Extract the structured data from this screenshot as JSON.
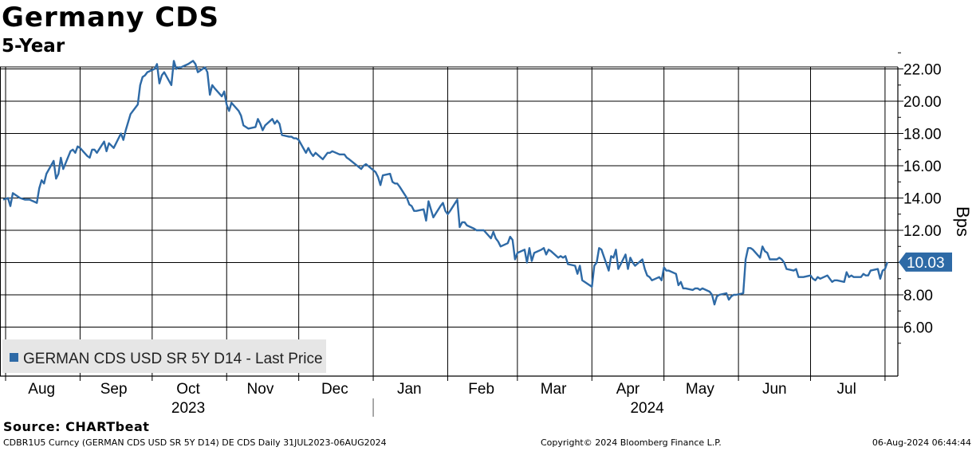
{
  "header": {
    "title": "Germany CDS",
    "subtitle": "5-Year"
  },
  "footer": {
    "source": "Source: CHARTbeat",
    "security_line": "CDBR1U5 Curncy (GERMAN CDS USD SR 5Y D14) DE CDS  Daily 31JUL2023-06AUG2024",
    "copyright": "Copyright© 2024 Bloomberg Finance L.P.",
    "timestamp": "06-Aug-2024 06:44:44"
  },
  "colors": {
    "series": "#2e6aa6",
    "grid": "#000000",
    "legend_bg": "#e6e6e6"
  },
  "chart_data": {
    "type": "line",
    "xlabel": "",
    "ylabel": "Bps",
    "ylim": [
      5,
      24
    ],
    "yticks": [
      6,
      8,
      10,
      12,
      14,
      16,
      18,
      20,
      22
    ],
    "ytick_labels": [
      "6.00",
      "8.00",
      "10.00",
      "12.00",
      "14.00",
      "16.00",
      "18.00",
      "20.00",
      "22.00"
    ],
    "xlim": [
      "2023-07-31",
      "2024-08-06"
    ],
    "x_month_labels": [
      {
        "label": "Aug",
        "date": "2023-08-16"
      },
      {
        "label": "Sep",
        "date": "2023-09-15"
      },
      {
        "label": "Oct",
        "date": "2023-10-16"
      },
      {
        "label": "Nov",
        "date": "2023-11-15"
      },
      {
        "label": "Dec",
        "date": "2023-12-16"
      },
      {
        "label": "Jan",
        "date": "2024-01-16"
      },
      {
        "label": "Feb",
        "date": "2024-02-15"
      },
      {
        "label": "Mar",
        "date": "2024-03-16"
      },
      {
        "label": "Apr",
        "date": "2024-04-16"
      },
      {
        "label": "May",
        "date": "2024-05-16"
      },
      {
        "label": "Jun",
        "date": "2024-06-16"
      },
      {
        "label": "Jul",
        "date": "2024-07-16"
      }
    ],
    "x_year_labels": [
      {
        "label": "2023",
        "date": "2023-10-16"
      },
      {
        "label": "2024",
        "date": "2024-04-24"
      }
    ],
    "x_gridlines": [
      "2023-08-01",
      "2023-09-01",
      "2023-10-01",
      "2023-11-01",
      "2023-12-01",
      "2024-01-01",
      "2024-02-01",
      "2024-03-01",
      "2024-04-01",
      "2024-05-01",
      "2024-06-01",
      "2024-07-01",
      "2024-08-01"
    ],
    "year_separator": "2024-01-01",
    "grid": true,
    "legend": {
      "position": "bottom-left",
      "label": "GERMAN CDS USD SR 5Y D14 - Last Price"
    },
    "last_value_label": "10.03",
    "series": [
      {
        "name": "GERMAN CDS USD SR 5Y D14 - Last Price",
        "points": [
          [
            "2023-07-31",
            13.9
          ],
          [
            "2023-08-02",
            14.0
          ],
          [
            "2023-08-03",
            13.5
          ],
          [
            "2023-08-04",
            14.3
          ],
          [
            "2023-08-07",
            14.0
          ],
          [
            "2023-08-09",
            13.9
          ],
          [
            "2023-08-11",
            13.9
          ],
          [
            "2023-08-14",
            13.7
          ],
          [
            "2023-08-15",
            14.6
          ],
          [
            "2023-08-16",
            15.1
          ],
          [
            "2023-08-17",
            14.9
          ],
          [
            "2023-08-18",
            15.5
          ],
          [
            "2023-08-21",
            16.3
          ],
          [
            "2023-08-22",
            15.2
          ],
          [
            "2023-08-23",
            15.5
          ],
          [
            "2023-08-24",
            16.5
          ],
          [
            "2023-08-25",
            15.8
          ],
          [
            "2023-08-28",
            16.9
          ],
          [
            "2023-08-29",
            17.0
          ],
          [
            "2023-08-30",
            16.8
          ],
          [
            "2023-08-31",
            17.2
          ],
          [
            "2023-09-01",
            17.1
          ],
          [
            "2023-09-04",
            16.6
          ],
          [
            "2023-09-05",
            16.5
          ],
          [
            "2023-09-06",
            17.0
          ],
          [
            "2023-09-07",
            17.0
          ],
          [
            "2023-09-08",
            16.8
          ],
          [
            "2023-09-11",
            17.5
          ],
          [
            "2023-09-12",
            16.9
          ],
          [
            "2023-09-13",
            17.4
          ],
          [
            "2023-09-15",
            17.1
          ],
          [
            "2023-09-18",
            18.0
          ],
          [
            "2023-09-19",
            17.6
          ],
          [
            "2023-09-20",
            18.2
          ],
          [
            "2023-09-22",
            19.2
          ],
          [
            "2023-09-25",
            19.8
          ],
          [
            "2023-09-26",
            21.0
          ],
          [
            "2023-09-27",
            21.5
          ],
          [
            "2023-09-28",
            21.6
          ],
          [
            "2023-09-29",
            21.8
          ],
          [
            "2023-10-02",
            22.0
          ],
          [
            "2023-10-03",
            22.3
          ],
          [
            "2023-10-04",
            21.1
          ],
          [
            "2023-10-05",
            21.6
          ],
          [
            "2023-10-06",
            21.8
          ],
          [
            "2023-10-09",
            21.0
          ],
          [
            "2023-10-10",
            22.5
          ],
          [
            "2023-10-11",
            22.0
          ],
          [
            "2023-10-12",
            22.1
          ],
          [
            "2023-10-13",
            22.1
          ],
          [
            "2023-10-16",
            22.3
          ],
          [
            "2023-10-17",
            22.4
          ],
          [
            "2023-10-18",
            22.5
          ],
          [
            "2023-10-19",
            22.3
          ],
          [
            "2023-10-20",
            21.8
          ],
          [
            "2023-10-23",
            22.1
          ],
          [
            "2023-10-24",
            21.8
          ],
          [
            "2023-10-25",
            20.4
          ],
          [
            "2023-10-26",
            21.0
          ],
          [
            "2023-10-27",
            20.8
          ],
          [
            "2023-10-30",
            20.3
          ],
          [
            "2023-10-31",
            20.6
          ],
          [
            "2023-11-01",
            19.8
          ],
          [
            "2023-11-02",
            19.4
          ],
          [
            "2023-11-03",
            19.9
          ],
          [
            "2023-11-06",
            19.4
          ],
          [
            "2023-11-07",
            19.1
          ],
          [
            "2023-11-08",
            18.5
          ],
          [
            "2023-11-09",
            18.4
          ],
          [
            "2023-11-10",
            18.3
          ],
          [
            "2023-11-13",
            18.4
          ],
          [
            "2023-11-14",
            18.9
          ],
          [
            "2023-11-15",
            18.6
          ],
          [
            "2023-11-16",
            18.2
          ],
          [
            "2023-11-17",
            18.5
          ],
          [
            "2023-11-20",
            18.9
          ],
          [
            "2023-11-21",
            18.6
          ],
          [
            "2023-11-22",
            18.8
          ],
          [
            "2023-11-23",
            18.6
          ],
          [
            "2023-11-24",
            17.9
          ],
          [
            "2023-11-27",
            17.8
          ],
          [
            "2023-11-28",
            17.8
          ],
          [
            "2023-11-29",
            17.7
          ],
          [
            "2023-11-30",
            17.7
          ],
          [
            "2023-12-01",
            17.6
          ],
          [
            "2023-12-04",
            16.8
          ],
          [
            "2023-12-05",
            17.1
          ],
          [
            "2023-12-06",
            16.8
          ],
          [
            "2023-12-07",
            16.6
          ],
          [
            "2023-12-08",
            16.8
          ],
          [
            "2023-12-11",
            16.4
          ],
          [
            "2023-12-12",
            16.6
          ],
          [
            "2023-12-13",
            16.8
          ],
          [
            "2023-12-14",
            16.8
          ],
          [
            "2023-12-15",
            16.9
          ],
          [
            "2023-12-18",
            16.7
          ],
          [
            "2023-12-19",
            16.7
          ],
          [
            "2023-12-20",
            16.7
          ],
          [
            "2023-12-21",
            16.5
          ],
          [
            "2023-12-22",
            16.4
          ],
          [
            "2023-12-27",
            15.8
          ],
          [
            "2023-12-28",
            16.0
          ],
          [
            "2023-12-29",
            16.1
          ],
          [
            "2024-01-02",
            15.6
          ],
          [
            "2024-01-03",
            15.3
          ],
          [
            "2024-01-04",
            14.8
          ],
          [
            "2024-01-05",
            15.4
          ],
          [
            "2024-01-08",
            15.5
          ],
          [
            "2024-01-09",
            15.0
          ],
          [
            "2024-01-10",
            14.9
          ],
          [
            "2024-01-11",
            14.9
          ],
          [
            "2024-01-12",
            14.7
          ],
          [
            "2024-01-15",
            14.0
          ],
          [
            "2024-01-16",
            13.6
          ],
          [
            "2024-01-17",
            13.5
          ],
          [
            "2024-01-18",
            13.2
          ],
          [
            "2024-01-19",
            13.2
          ],
          [
            "2024-01-22",
            13.3
          ],
          [
            "2024-01-23",
            12.6
          ],
          [
            "2024-01-24",
            13.8
          ],
          [
            "2024-01-25",
            13.3
          ],
          [
            "2024-01-26",
            12.8
          ],
          [
            "2024-01-29",
            13.5
          ],
          [
            "2024-01-30",
            13.7
          ],
          [
            "2024-01-31",
            13.2
          ],
          [
            "2024-02-01",
            13.0
          ],
          [
            "2024-02-02",
            13.2
          ],
          [
            "2024-02-05",
            13.9
          ],
          [
            "2024-02-06",
            12.2
          ],
          [
            "2024-02-07",
            12.5
          ],
          [
            "2024-02-08",
            12.5
          ],
          [
            "2024-02-09",
            12.3
          ],
          [
            "2024-02-12",
            12.1
          ],
          [
            "2024-02-13",
            12.0
          ],
          [
            "2024-02-14",
            12.0
          ],
          [
            "2024-02-15",
            12.0
          ],
          [
            "2024-02-16",
            12.0
          ],
          [
            "2024-02-19",
            11.5
          ],
          [
            "2024-02-20",
            11.9
          ],
          [
            "2024-02-21",
            11.5
          ],
          [
            "2024-02-22",
            11.3
          ],
          [
            "2024-02-23",
            11.0
          ],
          [
            "2024-02-26",
            11.2
          ],
          [
            "2024-02-27",
            11.6
          ],
          [
            "2024-02-28",
            11.4
          ],
          [
            "2024-02-29",
            10.2
          ],
          [
            "2024-03-01",
            10.6
          ],
          [
            "2024-03-04",
            10.8
          ],
          [
            "2024-03-05",
            10.0
          ],
          [
            "2024-03-06",
            10.9
          ],
          [
            "2024-03-07",
            10.1
          ],
          [
            "2024-03-08",
            10.6
          ],
          [
            "2024-03-11",
            10.8
          ],
          [
            "2024-03-12",
            10.9
          ],
          [
            "2024-03-13",
            10.5
          ],
          [
            "2024-03-14",
            10.8
          ],
          [
            "2024-03-15",
            10.7
          ],
          [
            "2024-03-18",
            10.3
          ],
          [
            "2024-03-19",
            10.4
          ],
          [
            "2024-03-20",
            10.3
          ],
          [
            "2024-03-21",
            10.4
          ],
          [
            "2024-03-22",
            9.9
          ],
          [
            "2024-03-25",
            9.8
          ],
          [
            "2024-03-26",
            9.3
          ],
          [
            "2024-03-27",
            9.8
          ],
          [
            "2024-03-28",
            8.9
          ],
          [
            "2024-04-01",
            8.5
          ],
          [
            "2024-04-02",
            9.8
          ],
          [
            "2024-04-03",
            10.0
          ],
          [
            "2024-04-04",
            10.9
          ],
          [
            "2024-04-05",
            10.8
          ],
          [
            "2024-04-08",
            9.5
          ],
          [
            "2024-04-09",
            10.4
          ],
          [
            "2024-04-10",
            10.3
          ],
          [
            "2024-04-11",
            10.8
          ],
          [
            "2024-04-12",
            9.6
          ],
          [
            "2024-04-15",
            10.5
          ],
          [
            "2024-04-16",
            9.6
          ],
          [
            "2024-04-17",
            10.3
          ],
          [
            "2024-04-18",
            10.0
          ],
          [
            "2024-04-19",
            9.8
          ],
          [
            "2024-04-22",
            10.2
          ],
          [
            "2024-04-23",
            9.6
          ],
          [
            "2024-04-24",
            9.2
          ],
          [
            "2024-04-25",
            9.1
          ],
          [
            "2024-04-26",
            8.9
          ],
          [
            "2024-04-29",
            9.1
          ],
          [
            "2024-04-30",
            8.9
          ],
          [
            "2024-05-01",
            9.7
          ],
          [
            "2024-05-02",
            9.5
          ],
          [
            "2024-05-03",
            9.5
          ],
          [
            "2024-05-06",
            9.3
          ],
          [
            "2024-05-07",
            8.6
          ],
          [
            "2024-05-08",
            8.8
          ],
          [
            "2024-05-09",
            8.4
          ],
          [
            "2024-05-10",
            8.4
          ],
          [
            "2024-05-13",
            8.3
          ],
          [
            "2024-05-14",
            8.4
          ],
          [
            "2024-05-15",
            8.4
          ],
          [
            "2024-05-16",
            8.3
          ],
          [
            "2024-05-17",
            8.4
          ],
          [
            "2024-05-20",
            8.2
          ],
          [
            "2024-05-21",
            8.0
          ],
          [
            "2024-05-22",
            7.4
          ],
          [
            "2024-05-23",
            7.9
          ],
          [
            "2024-05-24",
            8.0
          ],
          [
            "2024-05-27",
            8.1
          ],
          [
            "2024-05-28",
            7.7
          ],
          [
            "2024-05-29",
            7.9
          ],
          [
            "2024-05-30",
            8.0
          ],
          [
            "2024-05-31",
            8.0
          ],
          [
            "2024-06-03",
            8.1
          ],
          [
            "2024-06-04",
            10.2
          ],
          [
            "2024-06-05",
            10.9
          ],
          [
            "2024-06-06",
            10.9
          ],
          [
            "2024-06-07",
            10.8
          ],
          [
            "2024-06-10",
            10.3
          ],
          [
            "2024-06-11",
            11.0
          ],
          [
            "2024-06-12",
            10.7
          ],
          [
            "2024-06-13",
            10.6
          ],
          [
            "2024-06-14",
            10.2
          ],
          [
            "2024-06-17",
            10.2
          ],
          [
            "2024-06-18",
            10.3
          ],
          [
            "2024-06-19",
            10.2
          ],
          [
            "2024-06-20",
            10.0
          ],
          [
            "2024-06-21",
            9.6
          ],
          [
            "2024-06-24",
            9.5
          ],
          [
            "2024-06-25",
            9.6
          ],
          [
            "2024-06-26",
            9.1
          ],
          [
            "2024-06-27",
            9.1
          ],
          [
            "2024-06-28",
            9.1
          ],
          [
            "2024-07-01",
            9.2
          ],
          [
            "2024-07-02",
            9.0
          ],
          [
            "2024-07-03",
            8.9
          ],
          [
            "2024-07-04",
            9.1
          ],
          [
            "2024-07-05",
            9.0
          ],
          [
            "2024-07-08",
            9.2
          ],
          [
            "2024-07-09",
            9.0
          ],
          [
            "2024-07-10",
            8.8
          ],
          [
            "2024-07-11",
            8.9
          ],
          [
            "2024-07-12",
            8.9
          ],
          [
            "2024-07-15",
            8.8
          ],
          [
            "2024-07-16",
            9.4
          ],
          [
            "2024-07-17",
            9.1
          ],
          [
            "2024-07-18",
            9.2
          ],
          [
            "2024-07-19",
            9.1
          ],
          [
            "2024-07-22",
            9.1
          ],
          [
            "2024-07-23",
            9.3
          ],
          [
            "2024-07-24",
            9.2
          ],
          [
            "2024-07-25",
            9.2
          ],
          [
            "2024-07-26",
            9.5
          ],
          [
            "2024-07-29",
            9.6
          ],
          [
            "2024-07-30",
            9.0
          ],
          [
            "2024-07-31",
            9.5
          ],
          [
            "2024-08-01",
            9.6
          ],
          [
            "2024-08-02",
            10.03
          ]
        ]
      }
    ]
  }
}
